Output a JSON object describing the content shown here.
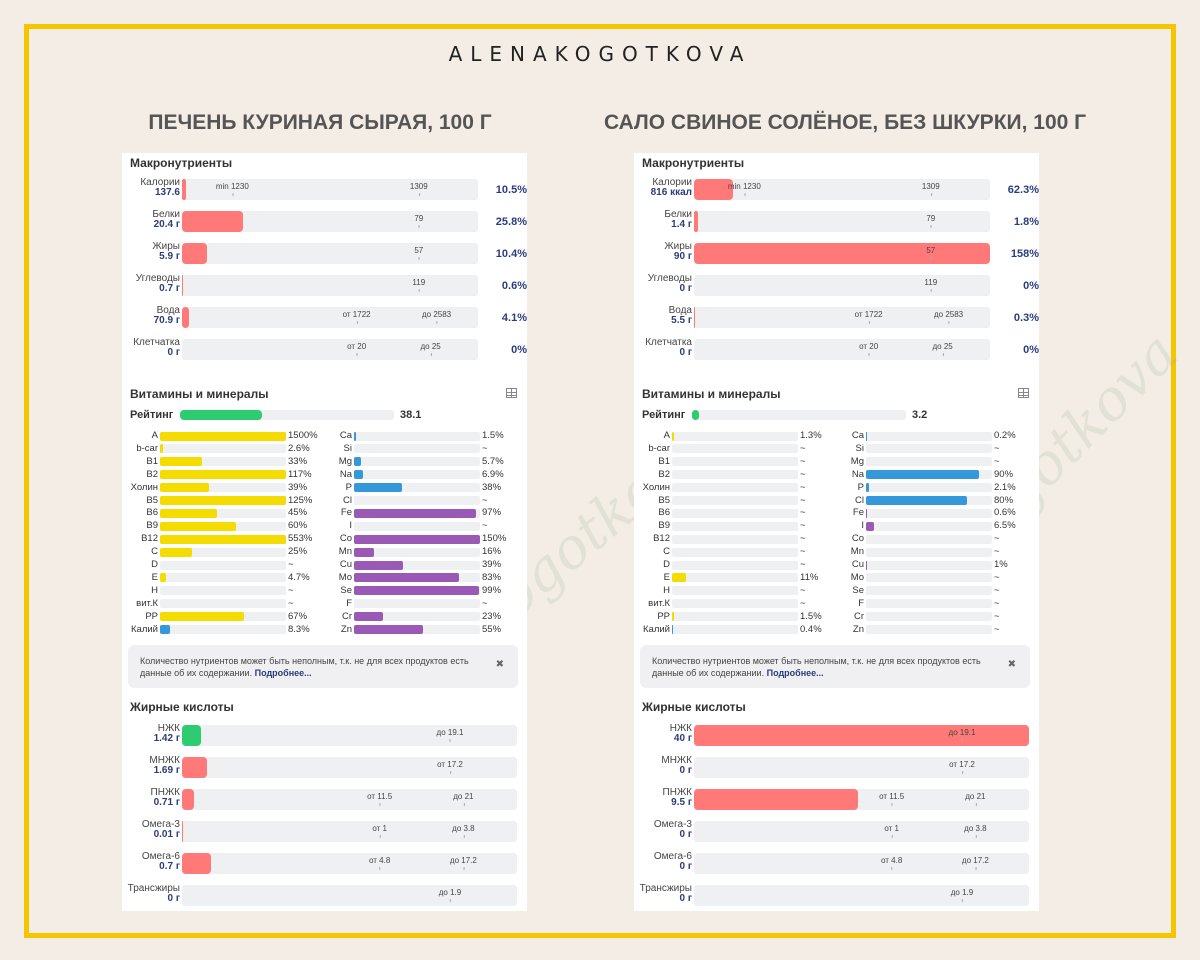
{
  "brand": "ALENAKOGOTKOVA",
  "watermark": "Alena Kogotkova",
  "colors": {
    "macro": "#ff7979",
    "good": "#2ecc71",
    "vitamin": "#f5dc00",
    "mineral": "#9b59b6",
    "mineral_blue": "#3498db",
    "frame": "#f6c500",
    "value": "#2a3c7c"
  },
  "labels": {
    "macro": "Макронутриенты",
    "vitmin": "Витамины и минералы",
    "rating": "Рейтинг",
    "fat_acids": "Жирные кислоты",
    "note": "Количество нутриентов может быть неполным, т.к. не для всех продуктов есть данные об их содержании.",
    "note_link": "Подробнее...",
    "close_icon": "✖",
    "table_icon": "table-icon"
  },
  "panels": [
    {
      "title": "ПЕЧЕНЬ КУРИНАЯ СЫРАЯ, 100 Г",
      "macros": [
        {
          "name": "Калории",
          "value": "137.6",
          "fill": 0.0152,
          "color": "macro",
          "pct": "10.5%",
          "marks": [
            {
              "t": "min 1230",
              "p": 0.17
            },
            {
              "t": "1309",
              "p": 0.8
            }
          ]
        },
        {
          "name": "Белки",
          "value": "20.4 г",
          "fill": 0.205,
          "color": "macro",
          "pct": "25.8%",
          "marks": [
            {
              "t": "79",
              "p": 0.8
            }
          ]
        },
        {
          "name": "Жиры",
          "value": "5.9 г",
          "fill": 0.083,
          "color": "macro",
          "pct": "10.4%",
          "marks": [
            {
              "t": "57",
              "p": 0.8
            }
          ]
        },
        {
          "name": "Углеводы",
          "value": "0.7 г",
          "fill": 0.005,
          "color": "macro",
          "pct": "0.6%",
          "marks": [
            {
              "t": "119",
              "p": 0.8
            }
          ]
        },
        {
          "name": "Вода",
          "value": "70.9 г",
          "fill": 0.0246,
          "color": "macro",
          "pct": "4.1%",
          "marks": [
            {
              "t": "от 1722",
              "p": 0.59
            },
            {
              "t": "до 2583",
              "p": 0.86
            }
          ]
        },
        {
          "name": "Клетчатка",
          "value": "0 г",
          "fill": 0,
          "color": "macro",
          "pct": "0%",
          "marks": [
            {
              "t": "от 20",
              "p": 0.59
            },
            {
              "t": "до 25",
              "p": 0.84
            }
          ]
        }
      ],
      "rating": {
        "value": "38.1",
        "fill": 0.381
      },
      "vitamins": [
        {
          "n": "A",
          "v": "1500%",
          "f": 1
        },
        {
          "n": "b-car",
          "v": "2.6%",
          "f": 0.026
        },
        {
          "n": "B1",
          "v": "33%",
          "f": 0.33
        },
        {
          "n": "B2",
          "v": "117%",
          "f": 1
        },
        {
          "n": "Холин",
          "v": "39%",
          "f": 0.39
        },
        {
          "n": "B5",
          "v": "125%",
          "f": 1
        },
        {
          "n": "B6",
          "v": "45%",
          "f": 0.45
        },
        {
          "n": "B9",
          "v": "60%",
          "f": 0.6
        },
        {
          "n": "B12",
          "v": "553%",
          "f": 1
        },
        {
          "n": "C",
          "v": "25%",
          "f": 0.25
        },
        {
          "n": "D",
          "v": "~",
          "f": 0
        },
        {
          "n": "E",
          "v": "4.7%",
          "f": 0.047
        },
        {
          "n": "H",
          "v": "~",
          "f": 0
        },
        {
          "n": "вит.К",
          "v": "~",
          "f": 0
        },
        {
          "n": "PP",
          "v": "67%",
          "f": 0.67
        },
        {
          "n": "Калий",
          "v": "8.3%",
          "f": 0.083,
          "c": "mineral_blue"
        }
      ],
      "minerals": [
        {
          "n": "Ca",
          "v": "1.5%",
          "f": 0.015,
          "c": "mineral_blue"
        },
        {
          "n": "Si",
          "v": "~",
          "f": 0
        },
        {
          "n": "Mg",
          "v": "5.7%",
          "f": 0.057,
          "c": "mineral_blue"
        },
        {
          "n": "Na",
          "v": "6.9%",
          "f": 0.069,
          "c": "mineral_blue"
        },
        {
          "n": "P",
          "v": "38%",
          "f": 0.38,
          "c": "mineral_blue"
        },
        {
          "n": "Cl",
          "v": "~",
          "f": 0
        },
        {
          "n": "Fe",
          "v": "97%",
          "f": 0.97,
          "c": "mineral"
        },
        {
          "n": "I",
          "v": "~",
          "f": 0
        },
        {
          "n": "Co",
          "v": "150%",
          "f": 1,
          "c": "mineral"
        },
        {
          "n": "Mn",
          "v": "16%",
          "f": 0.16,
          "c": "mineral"
        },
        {
          "n": "Cu",
          "v": "39%",
          "f": 0.39,
          "c": "mineral"
        },
        {
          "n": "Mo",
          "v": "83%",
          "f": 0.83,
          "c": "mineral"
        },
        {
          "n": "Se",
          "v": "99%",
          "f": 0.99,
          "c": "mineral"
        },
        {
          "n": "F",
          "v": "~",
          "f": 0
        },
        {
          "n": "Cr",
          "v": "23%",
          "f": 0.23,
          "c": "mineral"
        },
        {
          "n": "Zn",
          "v": "55%",
          "f": 0.55,
          "c": "mineral"
        }
      ],
      "fats": [
        {
          "name": "НЖК",
          "value": "1.42 г",
          "fill": 0.057,
          "color": "good",
          "marks": [
            {
              "t": "до 19.1",
              "p": 0.8
            }
          ]
        },
        {
          "name": "МНЖК",
          "value": "1.69 г",
          "fill": 0.075,
          "color": "macro",
          "marks": [
            {
              "t": "от 17.2",
              "p": 0.8
            }
          ]
        },
        {
          "name": "ПНЖК",
          "value": "0.71 г",
          "fill": 0.037,
          "color": "macro",
          "marks": [
            {
              "t": "от 11.5",
              "p": 0.59
            },
            {
              "t": "до 21",
              "p": 0.84
            }
          ]
        },
        {
          "name": "Омега-3",
          "value": "0.01 г",
          "fill": 0.004,
          "color": "macro",
          "marks": [
            {
              "t": "от 1",
              "p": 0.59
            },
            {
              "t": "до 3.8",
              "p": 0.84
            }
          ]
        },
        {
          "name": "Омега-6",
          "value": "0.7 г",
          "fill": 0.087,
          "color": "macro",
          "marks": [
            {
              "t": "от 4.8",
              "p": 0.59
            },
            {
              "t": "до 17.2",
              "p": 0.84
            }
          ]
        },
        {
          "name": "Трансжиры",
          "value": "0 г",
          "fill": 0,
          "color": "macro",
          "marks": [
            {
              "t": "до 1.9",
              "p": 0.8
            }
          ]
        }
      ]
    },
    {
      "title": "САЛО СВИНОЕ СОЛЁНОЕ, БЕЗ ШКУРКИ, 100 Г",
      "macros": [
        {
          "name": "Калории",
          "value": "816 ккал",
          "fill": 0.133,
          "color": "macro",
          "pct": "62.3%",
          "marks": [
            {
              "t": "min 1230",
              "p": 0.17
            },
            {
              "t": "1309",
              "p": 0.8
            }
          ]
        },
        {
          "name": "Белки",
          "value": "1.4 г",
          "fill": 0.014,
          "color": "macro",
          "pct": "1.8%",
          "marks": [
            {
              "t": "79",
              "p": 0.8
            }
          ]
        },
        {
          "name": "Жиры",
          "value": "90 г",
          "fill": 1,
          "color": "macro",
          "pct": "158%",
          "marks": [
            {
              "t": "57",
              "p": 0.8
            }
          ]
        },
        {
          "name": "Углеводы",
          "value": "0 г",
          "fill": 0,
          "color": "macro",
          "pct": "0%",
          "marks": [
            {
              "t": "119",
              "p": 0.8
            }
          ]
        },
        {
          "name": "Вода",
          "value": "5.5 г",
          "fill": 0.002,
          "color": "macro",
          "pct": "0.3%",
          "marks": [
            {
              "t": "от 1722",
              "p": 0.59
            },
            {
              "t": "до 2583",
              "p": 0.86
            }
          ]
        },
        {
          "name": "Клетчатка",
          "value": "0 г",
          "fill": 0,
          "color": "macro",
          "pct": "0%",
          "marks": [
            {
              "t": "от 20",
              "p": 0.59
            },
            {
              "t": "до 25",
              "p": 0.84
            }
          ]
        }
      ],
      "rating": {
        "value": "3.2",
        "fill": 0.032
      },
      "vitamins": [
        {
          "n": "A",
          "v": "1.3%",
          "f": 0.013
        },
        {
          "n": "b-car",
          "v": "~",
          "f": 0
        },
        {
          "n": "B1",
          "v": "~",
          "f": 0
        },
        {
          "n": "B2",
          "v": "~",
          "f": 0
        },
        {
          "n": "Холин",
          "v": "~",
          "f": 0
        },
        {
          "n": "B5",
          "v": "~",
          "f": 0
        },
        {
          "n": "B6",
          "v": "~",
          "f": 0
        },
        {
          "n": "B9",
          "v": "~",
          "f": 0
        },
        {
          "n": "B12",
          "v": "~",
          "f": 0
        },
        {
          "n": "C",
          "v": "~",
          "f": 0
        },
        {
          "n": "D",
          "v": "~",
          "f": 0
        },
        {
          "n": "E",
          "v": "11%",
          "f": 0.11
        },
        {
          "n": "H",
          "v": "~",
          "f": 0
        },
        {
          "n": "вит.К",
          "v": "~",
          "f": 0
        },
        {
          "n": "PP",
          "v": "1.5%",
          "f": 0.015
        },
        {
          "n": "Калий",
          "v": "0.4%",
          "f": 0.004,
          "c": "mineral_blue"
        }
      ],
      "minerals": [
        {
          "n": "Ca",
          "v": "0.2%",
          "f": 0.002,
          "c": "mineral_blue"
        },
        {
          "n": "Si",
          "v": "~",
          "f": 0
        },
        {
          "n": "Mg",
          "v": "~",
          "f": 0
        },
        {
          "n": "Na",
          "v": "90%",
          "f": 0.9,
          "c": "mineral_blue"
        },
        {
          "n": "P",
          "v": "2.1%",
          "f": 0.021,
          "c": "mineral_blue"
        },
        {
          "n": "Cl",
          "v": "80%",
          "f": 0.8,
          "c": "mineral_blue"
        },
        {
          "n": "Fe",
          "v": "0.6%",
          "f": 0.006,
          "c": "mineral"
        },
        {
          "n": "I",
          "v": "6.5%",
          "f": 0.065,
          "c": "mineral"
        },
        {
          "n": "Co",
          "v": "~",
          "f": 0
        },
        {
          "n": "Mn",
          "v": "~",
          "f": 0
        },
        {
          "n": "Cu",
          "v": "1%",
          "f": 0.01,
          "c": "mineral"
        },
        {
          "n": "Mo",
          "v": "~",
          "f": 0
        },
        {
          "n": "Se",
          "v": "~",
          "f": 0
        },
        {
          "n": "F",
          "v": "~",
          "f": 0
        },
        {
          "n": "Cr",
          "v": "~",
          "f": 0
        },
        {
          "n": "Zn",
          "v": "~",
          "f": 0
        }
      ],
      "fats": [
        {
          "name": "НЖК",
          "value": "40 г",
          "fill": 1,
          "color": "macro",
          "marks": [
            {
              "t": "до 19.1",
              "p": 0.8
            }
          ]
        },
        {
          "name": "МНЖК",
          "value": "0 г",
          "fill": 0,
          "color": "macro",
          "marks": [
            {
              "t": "от 17.2",
              "p": 0.8
            }
          ]
        },
        {
          "name": "ПНЖК",
          "value": "9.5 г",
          "fill": 0.49,
          "color": "macro",
          "marks": [
            {
              "t": "от 11.5",
              "p": 0.59
            },
            {
              "t": "до 21",
              "p": 0.84
            }
          ]
        },
        {
          "name": "Омега-3",
          "value": "0 г",
          "fill": 0,
          "color": "macro",
          "marks": [
            {
              "t": "от 1",
              "p": 0.59
            },
            {
              "t": "до 3.8",
              "p": 0.84
            }
          ]
        },
        {
          "name": "Омега-6",
          "value": "0 г",
          "fill": 0,
          "color": "macro",
          "marks": [
            {
              "t": "от 4.8",
              "p": 0.59
            },
            {
              "t": "до 17.2",
              "p": 0.84
            }
          ]
        },
        {
          "name": "Трансжиры",
          "value": "0 г",
          "fill": 0,
          "color": "macro",
          "marks": [
            {
              "t": "до 1.9",
              "p": 0.8
            }
          ]
        }
      ]
    }
  ],
  "chart_data": [
    {
      "type": "bar",
      "title": "ПЕЧЕНЬ КУРИНАЯ СЫРАЯ, 100 Г",
      "categories": [
        "Калории",
        "Белки",
        "Жиры",
        "Углеводы",
        "Вода",
        "Клетчатка"
      ],
      "values": [
        137.6,
        20.4,
        5.9,
        0.7,
        70.9,
        0
      ],
      "percent_of_norm": [
        10.5,
        25.8,
        10.4,
        0.6,
        4.1,
        0
      ]
    },
    {
      "type": "bar",
      "title": "САЛО СВИНОЕ СОЛЁНОЕ, БЕЗ ШКУРКИ, 100 Г",
      "categories": [
        "Калории",
        "Белки",
        "Жиры",
        "Углеводы",
        "Вода",
        "Клетчатка"
      ],
      "values": [
        816,
        1.4,
        90,
        0,
        5.5,
        0
      ],
      "percent_of_norm": [
        62.3,
        1.8,
        158,
        0,
        0.3,
        0
      ]
    }
  ]
}
